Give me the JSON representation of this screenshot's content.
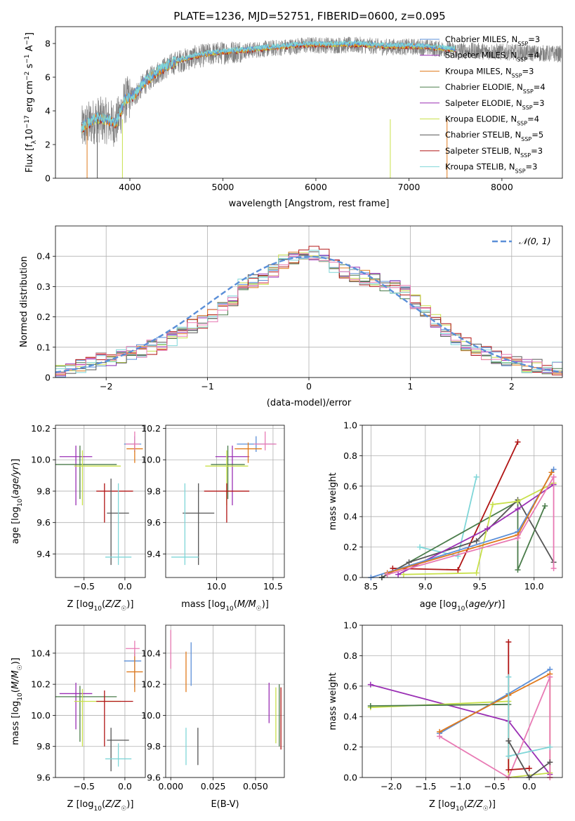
{
  "figure_title": "PLATE=1236, MJD=52751, FIBERID=0600, z=0.095",
  "colors": {
    "Chabrier MILES": "#5b8fd8",
    "Salpeter MILES": "#9a2fb4",
    "Kroupa MILES": "#e07a1c",
    "Chabrier ELODIE": "#4a7c4a",
    "Salpeter ELODIE": "#9a2fb4",
    "Kroupa ELODIE": "#c8e04a",
    "Chabrier STELIB": "#555555",
    "Salpeter STELIB": "#b01414",
    "Kroupa STELIB": "#7fd6d8",
    "data": "#808080",
    "pink": "#e87ab4"
  },
  "chart_data": [
    {
      "id": "spectrum",
      "type": "line",
      "xlabel": "wavelength [Angstrom, rest frame]",
      "ylabel": "Flux [f_λ 10^-17 erg cm^-2 s^-1 A^-1]",
      "xlim": [
        3200,
        8650
      ],
      "ylim": [
        0,
        9
      ],
      "xticks": [
        4000,
        5000,
        6000,
        7000,
        8000
      ],
      "yticks": [
        0,
        2,
        4,
        6,
        8
      ],
      "grid": false,
      "legend_position": "right",
      "legend": [
        "Chabrier MILES, N_SSP=3",
        "Salpeter MILES, N_SSP=4",
        "Kroupa MILES, N_SSP=3",
        "Chabrier ELODIE, N_SSP=4",
        "Salpeter ELODIE, N_SSP=3",
        "Kroupa ELODIE, N_SSP=4",
        "Chabrier STELIB, N_SSP=5",
        "Salpeter STELIB, N_SSP=3",
        "Kroupa STELIB, N_SSP=3"
      ],
      "model_curve": {
        "x": [
          3480,
          3550,
          3650,
          3750,
          3850,
          3950,
          4050,
          4150,
          4300,
          4500,
          4700,
          4900,
          5100,
          5300,
          5500,
          5700,
          5900,
          6100,
          6300,
          6500,
          6700,
          6900,
          7100,
          7300,
          7500
        ],
        "y": [
          2.9,
          3.2,
          3.5,
          3.4,
          3.2,
          4.6,
          4.9,
          5.6,
          6.3,
          6.9,
          7.2,
          7.4,
          7.5,
          7.6,
          7.7,
          7.8,
          7.9,
          7.9,
          7.9,
          7.9,
          7.8,
          7.8,
          7.8,
          7.7,
          7.6
        ]
      }
    },
    {
      "id": "residuals",
      "type": "bar",
      "xlabel": "(data-model)/error",
      "ylabel": "Normed distribution",
      "xlim": [
        -2.5,
        2.5
      ],
      "ylim": [
        0,
        0.5
      ],
      "xticks": [
        -2,
        -1,
        0,
        1,
        2
      ],
      "yticks": [
        0.0,
        0.1,
        0.2,
        0.3,
        0.4
      ],
      "grid": true,
      "legend_position": "top-right",
      "legend": [
        "𝒩(0, 1)"
      ],
      "bin_width": 0.1,
      "histogram": [
        0.02,
        0.03,
        0.04,
        0.05,
        0.06,
        0.06,
        0.07,
        0.08,
        0.09,
        0.1,
        0.11,
        0.13,
        0.15,
        0.17,
        0.18,
        0.2,
        0.23,
        0.26,
        0.3,
        0.32,
        0.33,
        0.35,
        0.38,
        0.4,
        0.4,
        0.41,
        0.4,
        0.37,
        0.35,
        0.34,
        0.33,
        0.32,
        0.31,
        0.3,
        0.28,
        0.25,
        0.22,
        0.19,
        0.16,
        0.13,
        0.11,
        0.09,
        0.08,
        0.07,
        0.06,
        0.05,
        0.04,
        0.04,
        0.03,
        0.03
      ]
    },
    {
      "id": "age_vs_Z",
      "type": "scatter",
      "xlabel": "Z [log10(Z/Z☉)]",
      "ylabel": "age [log10(age/yr)]",
      "xlim": [
        -0.85,
        0.25
      ],
      "ylim": [
        9.25,
        10.22
      ],
      "xticks": [
        -0.5,
        0.0
      ],
      "xtick_labels": [
        "−0.5",
        "0.0"
      ],
      "yticks": [
        9.4,
        9.6,
        9.8,
        10.0,
        10.2
      ],
      "ytick_labels": [
        "9.4",
        "9.6",
        "9.8",
        "10.0",
        "10.2"
      ],
      "grid": true,
      "points": [
        {
          "model": "Salpeter ELODIE",
          "x": -0.6,
          "y": 10.02,
          "xerr": [
            0.2,
            0.2
          ],
          "yerr": [
            0.31,
            0.07
          ]
        },
        {
          "model": "Chabrier ELODIE",
          "x": -0.55,
          "y": 9.97,
          "xerr": [
            0.3,
            0.45
          ],
          "yerr": [
            0.22,
            0.12
          ]
        },
        {
          "model": "Kroupa ELODIE",
          "x": -0.52,
          "y": 9.96,
          "xerr": [
            0.1,
            0.47
          ],
          "yerr": [
            0.25,
            0.1
          ]
        },
        {
          "model": "Salpeter STELIB",
          "x": -0.25,
          "y": 9.8,
          "xerr": [
            0.1,
            0.35
          ],
          "yerr": [
            0.2,
            0.05
          ]
        },
        {
          "model": "Chabrier STELIB",
          "x": -0.17,
          "y": 9.66,
          "xerr": [
            0.05,
            0.22
          ],
          "yerr": [
            0.33,
            0.22
          ]
        },
        {
          "model": "Kroupa STELIB",
          "x": -0.08,
          "y": 9.38,
          "xerr": [
            0.16,
            0.16
          ],
          "yerr": [
            0.05,
            0.47
          ]
        },
        {
          "model": "Chabrier MILES",
          "x": 0.12,
          "y": 10.1,
          "xerr": [
            0.13,
            0.08
          ],
          "yerr": [
            0.05,
            0.05
          ]
        },
        {
          "model": "Kroupa MILES",
          "x": 0.12,
          "y": 10.07,
          "xerr": [
            0.1,
            0.1
          ],
          "yerr": [
            0.09,
            0.04
          ]
        },
        {
          "model": "pink",
          "x": 0.12,
          "y": 10.1,
          "xerr": [
            0.11,
            0.06
          ],
          "yerr": [
            0.04,
            0.08
          ]
        }
      ]
    },
    {
      "id": "age_vs_mass",
      "type": "scatter",
      "xlabel": "mass [log10(M/M☉)]",
      "ylabel": "",
      "xlim": [
        9.55,
        10.6
      ],
      "ylim": [
        9.25,
        10.22
      ],
      "xticks": [
        10.0,
        10.5
      ],
      "xtick_labels": [
        "10.0",
        "10.5"
      ],
      "yticks": [
        9.4,
        9.6,
        9.8,
        10.0,
        10.2
      ],
      "ytick_labels": [
        "9.4",
        "9.6",
        "9.8",
        "10.0",
        "10.2"
      ],
      "grid": true,
      "points": [
        {
          "model": "Salpeter ELODIE",
          "x": 10.14,
          "y": 10.02,
          "xerr": [
            0.15,
            0.15
          ],
          "yerr": [
            0.31,
            0.07
          ]
        },
        {
          "model": "Chabrier ELODIE",
          "x": 10.1,
          "y": 9.97,
          "xerr": [
            0.15,
            0.15
          ],
          "yerr": [
            0.22,
            0.12
          ]
        },
        {
          "model": "Kroupa ELODIE",
          "x": 10.09,
          "y": 9.96,
          "xerr": [
            0.19,
            0.19
          ],
          "yerr": [
            0.25,
            0.1
          ]
        },
        {
          "model": "Salpeter STELIB",
          "x": 10.09,
          "y": 9.8,
          "xerr": [
            0.2,
            0.2
          ],
          "yerr": [
            0.2,
            0.05
          ]
        },
        {
          "model": "Chabrier STELIB",
          "x": 9.84,
          "y": 9.66,
          "xerr": [
            0.14,
            0.14
          ],
          "yerr": [
            0.33,
            0.19
          ]
        },
        {
          "model": "Kroupa STELIB",
          "x": 9.72,
          "y": 9.38,
          "xerr": [
            0.12,
            0.12
          ],
          "yerr": [
            0.05,
            0.47
          ]
        },
        {
          "model": "Chabrier MILES",
          "x": 10.35,
          "y": 10.1,
          "xerr": [
            0.17,
            0.17
          ],
          "yerr": [
            0.05,
            0.05
          ]
        },
        {
          "model": "Kroupa MILES",
          "x": 10.28,
          "y": 10.07,
          "xerr": [
            0.12,
            0.12
          ],
          "yerr": [
            0.09,
            0.04
          ]
        },
        {
          "model": "pink",
          "x": 10.43,
          "y": 10.1,
          "xerr": [
            0.1,
            0.1
          ],
          "yerr": [
            0.04,
            0.08
          ]
        }
      ]
    },
    {
      "id": "weight_vs_age",
      "type": "line",
      "xlabel": "age [log10(age/yr)]",
      "ylabel": "mass weight",
      "xlim": [
        8.42,
        10.26
      ],
      "ylim": [
        0,
        1
      ],
      "xticks": [
        8.5,
        9.0,
        9.5,
        10.0
      ],
      "xtick_labels": [
        "8.5",
        "9.0",
        "9.5",
        "10.0"
      ],
      "yticks": [
        0.0,
        0.2,
        0.4,
        0.6,
        0.8,
        1.0
      ],
      "ytick_labels": [
        "0.0",
        "0.2",
        "0.4",
        "0.6",
        "0.8",
        "1.0"
      ],
      "grid": true,
      "series": [
        {
          "name": "Kroupa STELIB",
          "x": [
            8.95,
            9.3,
            9.47
          ],
          "y": [
            0.2,
            0.14,
            0.66
          ]
        },
        {
          "name": "Salpeter STELIB",
          "x": [
            8.7,
            9.3,
            9.85
          ],
          "y": [
            0.06,
            0.05,
            0.89
          ]
        },
        {
          "name": "Chabrier ELODIE",
          "x": [
            8.6,
            9.85,
            9.85,
            10.1
          ],
          "y": [
            0.0,
            0.5,
            0.05,
            0.47
          ]
        },
        {
          "name": "Chabrier STELIB",
          "x": [
            8.6,
            8.85,
            9.47,
            9.85,
            10.18
          ],
          "y": [
            0.0,
            0.1,
            0.24,
            0.51,
            0.1
          ]
        },
        {
          "name": "Kroupa ELODIE",
          "x": [
            8.8,
            9.47,
            9.62,
            9.85,
            10.18
          ],
          "y": [
            0.02,
            0.03,
            0.48,
            0.5,
            0.62
          ]
        },
        {
          "name": "Salpeter ELODIE",
          "x": [
            8.75,
            9.57,
            9.85,
            10.18
          ],
          "y": [
            0.02,
            0.32,
            0.45,
            0.61
          ]
        },
        {
          "name": "Chabrier MILES",
          "x": [
            8.5,
            9.85,
            10.18
          ],
          "y": [
            0.0,
            0.3,
            0.71
          ]
        },
        {
          "name": "Kroupa MILES",
          "x": [
            8.65,
            9.85,
            10.16
          ],
          "y": [
            0.03,
            0.28,
            0.69
          ]
        },
        {
          "name": "pink",
          "x": [
            8.65,
            9.85,
            10.18,
            10.18
          ],
          "y": [
            0.02,
            0.26,
            0.66,
            0.06
          ]
        }
      ]
    },
    {
      "id": "mass_vs_Z",
      "type": "scatter",
      "xlabel": "Z [log10(Z/Z☉)]",
      "ylabel": "mass [log10(M/M☉)]",
      "xlim": [
        -0.85,
        0.25
      ],
      "ylim": [
        9.6,
        10.58
      ],
      "xticks": [
        -0.5,
        0.0
      ],
      "xtick_labels": [
        "−0.5",
        "0.0"
      ],
      "yticks": [
        9.6,
        9.8,
        10.0,
        10.2,
        10.4
      ],
      "ytick_labels": [
        "9.6",
        "9.8",
        "10.0",
        "10.2",
        "10.4"
      ],
      "grid": true,
      "points": [
        {
          "model": "Salpeter ELODIE",
          "x": -0.6,
          "y": 10.14,
          "xerr": [
            0.2,
            0.2
          ],
          "yerr": [
            0.23,
            0.07
          ]
        },
        {
          "model": "Chabrier ELODIE",
          "x": -0.55,
          "y": 10.12,
          "xerr": [
            0.3,
            0.45
          ],
          "yerr": [
            0.29,
            0.07
          ]
        },
        {
          "model": "Kroupa ELODIE",
          "x": -0.52,
          "y": 10.09,
          "xerr": [
            0.1,
            0.47
          ],
          "yerr": [
            0.29,
            0.08
          ]
        },
        {
          "model": "Salpeter STELIB",
          "x": -0.25,
          "y": 10.09,
          "xerr": [
            0.1,
            0.35
          ],
          "yerr": [
            0.29,
            0.07
          ]
        },
        {
          "model": "Chabrier STELIB",
          "x": -0.17,
          "y": 9.84,
          "xerr": [
            0.05,
            0.22
          ],
          "yerr": [
            0.2,
            0.08
          ]
        },
        {
          "model": "Kroupa STELIB",
          "x": -0.08,
          "y": 9.72,
          "xerr": [
            0.16,
            0.16
          ],
          "yerr": [
            0.05,
            0.1
          ]
        },
        {
          "model": "Chabrier MILES",
          "x": 0.12,
          "y": 10.35,
          "xerr": [
            0.13,
            0.08
          ],
          "yerr": [
            0.17,
            0.05
          ]
        },
        {
          "model": "Kroupa MILES",
          "x": 0.12,
          "y": 10.28,
          "xerr": [
            0.1,
            0.1
          ],
          "yerr": [
            0.13,
            0.14
          ]
        },
        {
          "model": "pink",
          "x": 0.12,
          "y": 10.43,
          "xerr": [
            0.11,
            0.06
          ],
          "yerr": [
            0.05,
            0.05
          ]
        }
      ]
    },
    {
      "id": "mass_vs_ebv",
      "type": "scatter",
      "xlabel": "E(B-V)",
      "ylabel": "",
      "xlim": [
        -0.003,
        0.067
      ],
      "ylim": [
        9.6,
        10.58
      ],
      "xticks": [
        0.0,
        0.025,
        0.05
      ],
      "xtick_labels": [
        "0.000",
        "0.025",
        "0.050"
      ],
      "yticks": [
        9.6,
        9.8,
        10.0,
        10.2,
        10.4
      ],
      "ytick_labels": [
        "9.6",
        "9.8",
        "10.0",
        "10.2",
        "10.4"
      ],
      "grid": true,
      "points": [
        {
          "model": "pink",
          "x": 0.0,
          "y": 10.4,
          "xerr": [
            0,
            0
          ],
          "yerr": [
            0.1,
            0.15
          ]
        },
        {
          "model": "Kroupa MILES",
          "x": 0.009,
          "y": 10.28,
          "xerr": [
            0,
            0
          ],
          "yerr": [
            0.13,
            0.13
          ]
        },
        {
          "model": "Chabrier MILES",
          "x": 0.012,
          "y": 10.33,
          "xerr": [
            0,
            0
          ],
          "yerr": [
            0.14,
            0.14
          ]
        },
        {
          "model": "Kroupa STELIB",
          "x": 0.009,
          "y": 9.78,
          "xerr": [
            0,
            0
          ],
          "yerr": [
            0.1,
            0.14
          ]
        },
        {
          "model": "Chabrier STELIB",
          "x": 0.016,
          "y": 9.8,
          "xerr": [
            0,
            0
          ],
          "yerr": [
            0.12,
            0.12
          ]
        },
        {
          "model": "Salpeter ELODIE",
          "x": 0.058,
          "y": 10.08,
          "xerr": [
            0,
            0
          ],
          "yerr": [
            0.13,
            0.13
          ]
        },
        {
          "model": "Kroupa ELODIE",
          "x": 0.062,
          "y": 10.0,
          "xerr": [
            0,
            0
          ],
          "yerr": [
            0.18,
            0.18
          ]
        },
        {
          "model": "Chabrier ELODIE",
          "x": 0.064,
          "y": 10.0,
          "xerr": [
            0,
            0
          ],
          "yerr": [
            0.2,
            0.2
          ]
        },
        {
          "model": "Salpeter STELIB",
          "x": 0.065,
          "y": 9.98,
          "xerr": [
            0,
            0
          ],
          "yerr": [
            0.2,
            0.2
          ]
        }
      ]
    },
    {
      "id": "weight_vs_Z",
      "type": "line",
      "xlabel": "Z [log10(Z/Z☉)]",
      "ylabel": "mass weight",
      "xlim": [
        -2.42,
        0.48
      ],
      "ylim": [
        0,
        1
      ],
      "xticks": [
        -2.0,
        -1.5,
        -1.0,
        -0.5,
        0.0
      ],
      "xtick_labels": [
        "−2.0",
        "−1.5",
        "−1.0",
        "−0.5",
        "0.0"
      ],
      "yticks": [
        0.0,
        0.2,
        0.4,
        0.6,
        0.8,
        1.0
      ],
      "ytick_labels": [
        "0.0",
        "0.2",
        "0.4",
        "0.6",
        "0.8",
        "1.0"
      ],
      "grid": true,
      "series": [
        {
          "name": "Salpeter ELODIE",
          "x": [
            -2.3,
            -0.3,
            0.3
          ],
          "y": [
            0.61,
            0.37,
            0.02
          ]
        },
        {
          "name": "Kroupa ELODIE",
          "x": [
            -2.3,
            -0.3,
            -0.3,
            0.3
          ],
          "y": [
            0.46,
            0.5,
            0.0,
            0.03
          ]
        },
        {
          "name": "Chabrier ELODIE",
          "x": [
            -2.3,
            -0.3
          ],
          "y": [
            0.47,
            0.48
          ]
        },
        {
          "name": "Chabrier MILES",
          "x": [
            -1.3,
            -0.3,
            0.3
          ],
          "y": [
            0.29,
            0.55,
            0.71
          ]
        },
        {
          "name": "Kroupa MILES",
          "x": [
            -1.3,
            -0.3,
            0.3,
            0.3
          ],
          "y": [
            0.3,
            0.54,
            0.68,
            0.0
          ]
        },
        {
          "name": "pink",
          "x": [
            -1.3,
            -0.3,
            0.3,
            0.3
          ],
          "y": [
            0.27,
            0.0,
            0.66,
            0.0
          ]
        },
        {
          "name": "Salpeter STELIB",
          "x": [
            -0.3,
            -0.3,
            0.0
          ],
          "y": [
            0.89,
            0.05,
            0.06
          ]
        },
        {
          "name": "Kroupa STELIB",
          "x": [
            -0.3,
            -0.3,
            0.3
          ],
          "y": [
            0.66,
            0.14,
            0.2
          ]
        },
        {
          "name": "Chabrier STELIB",
          "x": [
            -0.3,
            0.0,
            0.3
          ],
          "y": [
            0.24,
            0.0,
            0.1
          ]
        }
      ]
    }
  ]
}
